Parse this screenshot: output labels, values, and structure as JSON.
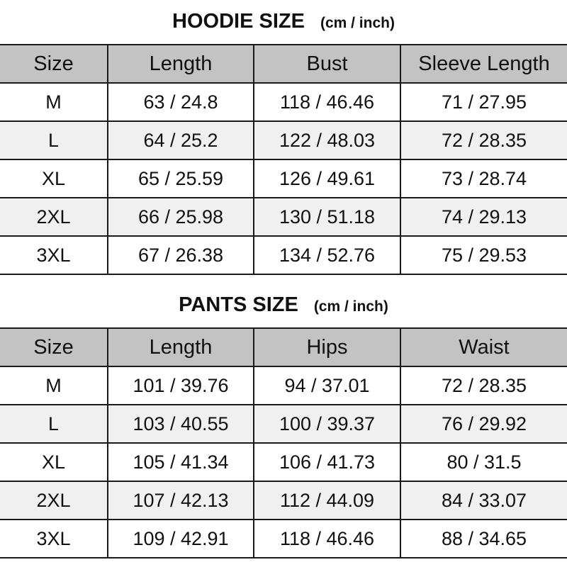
{
  "hoodie": {
    "title": "HOODIE SIZE",
    "unit": "(cm / inch)",
    "headers": [
      "Size",
      "Length",
      "Bust",
      "Sleeve Length"
    ],
    "rows": [
      [
        "M",
        "63 / 24.8",
        "118 / 46.46",
        "71 / 27.95"
      ],
      [
        "L",
        "64 / 25.2",
        "122 / 48.03",
        "72 / 28.35"
      ],
      [
        "XL",
        "65 / 25.59",
        "126 / 49.61",
        "73 / 28.74"
      ],
      [
        "2XL",
        "66 / 25.98",
        "130 / 51.18",
        "74 / 29.13"
      ],
      [
        "3XL",
        "67 / 26.38",
        "134 / 52.76",
        "75 / 29.53"
      ]
    ]
  },
  "pants": {
    "title": "PANTS SIZE",
    "unit": "(cm / inch)",
    "headers": [
      "Size",
      "Length",
      "Hips",
      "Waist"
    ],
    "rows": [
      [
        "M",
        "101 / 39.76",
        "94 / 37.01",
        "72 / 28.35"
      ],
      [
        "L",
        "103 / 40.55",
        "100 / 39.37",
        "76 / 29.92"
      ],
      [
        "XL",
        "105 / 41.34",
        "106 / 41.73",
        "80 / 31.5"
      ],
      [
        "2XL",
        "107 / 42.13",
        "112 / 44.09",
        "84 / 33.07"
      ],
      [
        "3XL",
        "109 / 42.91",
        "118 / 46.46",
        "88 / 34.65"
      ]
    ]
  },
  "colors": {
    "header_bg": "#c3c3c3",
    "alt_row_bg": "#f0f0f0",
    "border": "#1a1a1a"
  }
}
